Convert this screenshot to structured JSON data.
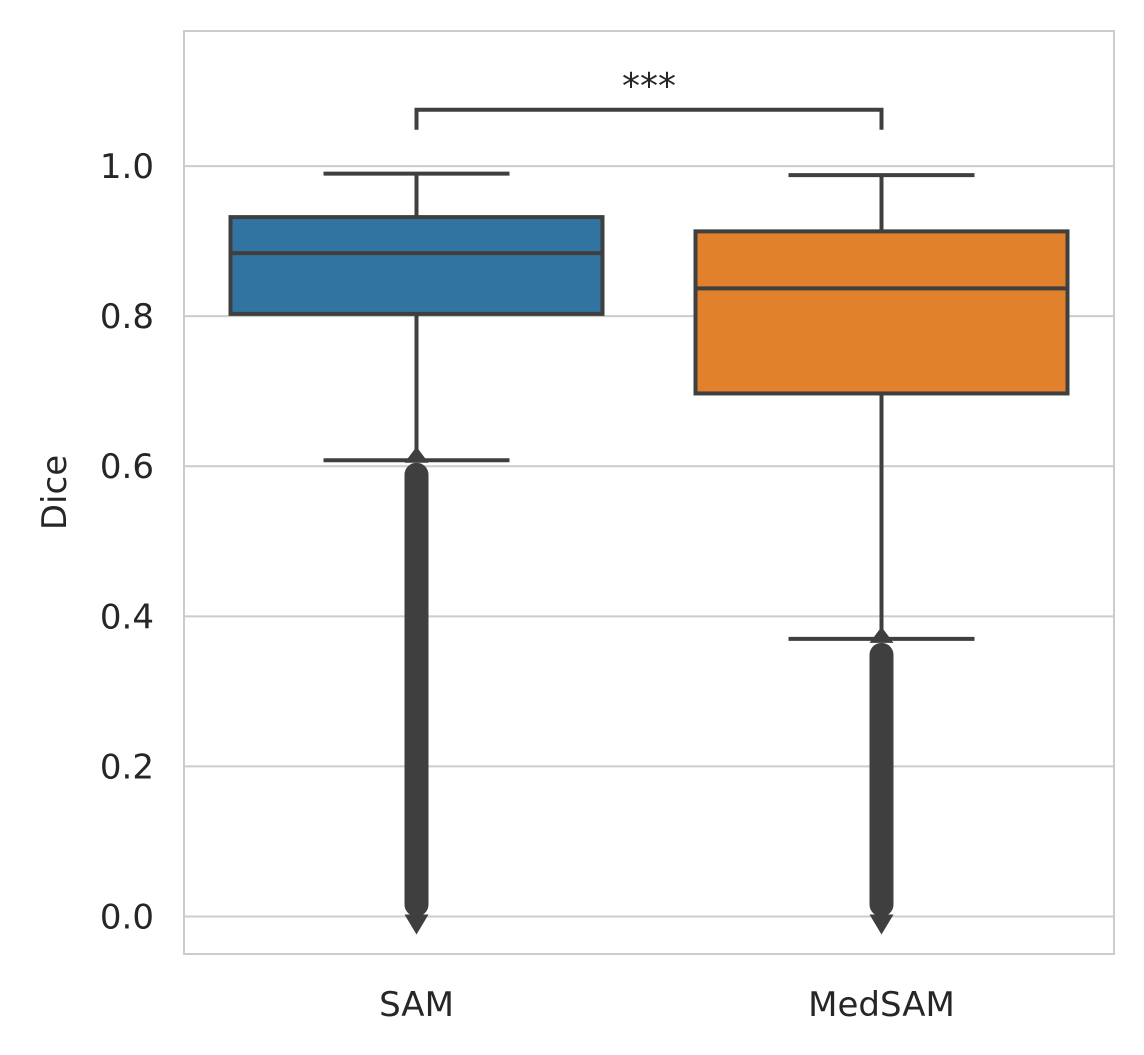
{
  "chart_data": {
    "type": "box",
    "title": "",
    "xlabel": "",
    "ylabel": "Dice",
    "ylim": [
      -0.05,
      1.18
    ],
    "yticks": [
      "0.0",
      "0.2",
      "0.4",
      "0.6",
      "0.8",
      "1.0"
    ],
    "grid": true,
    "categories": [
      "SAM",
      "MedSAM"
    ],
    "series": [
      {
        "category": "SAM",
        "color": "#3274a1",
        "whisker_low": 0.608,
        "q1": 0.803,
        "median": 0.884,
        "q3": 0.932,
        "whisker_high": 0.99,
        "outlier_range": [
          0.0,
          0.61
        ]
      },
      {
        "category": "MedSAM",
        "color": "#e1812c",
        "whisker_low": 0.37,
        "q1": 0.697,
        "median": 0.837,
        "q3": 0.913,
        "whisker_high": 0.988,
        "outlier_range": [
          0.0,
          0.37
        ]
      }
    ],
    "annotation": {
      "text": "***",
      "between": [
        "SAM",
        "MedSAM"
      ],
      "y": 1.075
    },
    "colors": {
      "grid": "#cccccc",
      "spine": "#cccccc",
      "line": "#3f3f3f",
      "text": "#262626"
    }
  }
}
